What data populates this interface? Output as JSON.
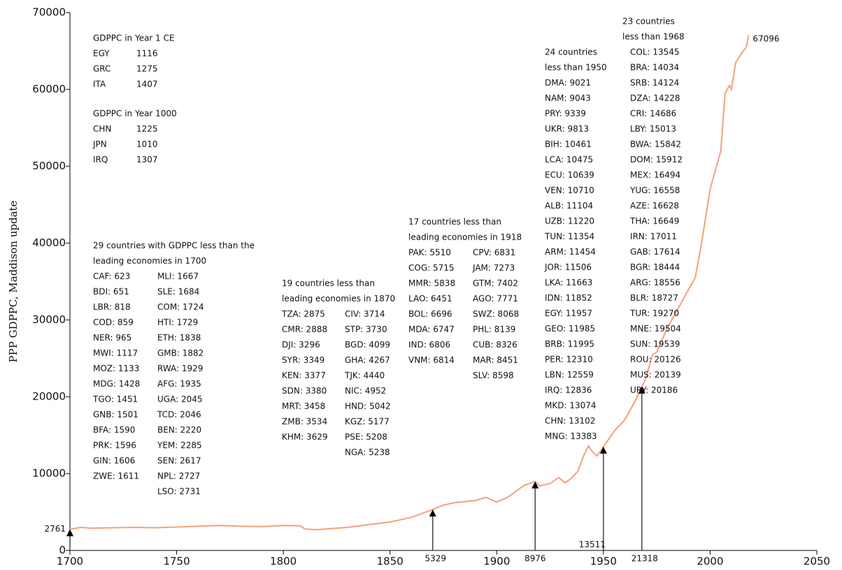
{
  "chart_data": {
    "type": "line",
    "y_label": "PPP GDPPC, Maddison update",
    "color": "#f7a07a",
    "x": [
      1700,
      1705,
      1710,
      1720,
      1730,
      1740,
      1750,
      1760,
      1770,
      1780,
      1790,
      1800,
      1808,
      1810,
      1815,
      1820,
      1830,
      1840,
      1850,
      1860,
      1870,
      1875,
      1880,
      1890,
      1895,
      1900,
      1905,
      1910,
      1913,
      1918,
      1920,
      1925,
      1929,
      1932,
      1935,
      1938,
      1941,
      1943,
      1945,
      1947,
      1950,
      1955,
      1960,
      1965,
      1968,
      1970,
      1973,
      1975,
      1980,
      1985,
      1990,
      1993,
      1996,
      2000,
      2005,
      2007,
      2009,
      2010,
      2012,
      2015,
      2017,
      2018
    ],
    "values": [
      2761,
      3000,
      2900,
      2950,
      3000,
      2950,
      3050,
      3150,
      3250,
      3150,
      3100,
      3250,
      3200,
      2800,
      2700,
      2800,
      3000,
      3350,
      3700,
      4300,
      5329,
      5900,
      6200,
      6500,
      6900,
      6300,
      6900,
      7900,
      8500,
      8976,
      8400,
      8700,
      9500,
      8800,
      9400,
      10300,
      12500,
      13600,
      12800,
      12300,
      13511,
      15500,
      17000,
      19500,
      21318,
      22500,
      25500,
      25800,
      29000,
      31500,
      34000,
      35500,
      40000,
      47000,
      52000,
      59500,
      60500,
      60000,
      63500,
      64800,
      65500,
      67096
    ],
    "xlim": [
      1700,
      2050
    ],
    "xticks": [
      1700,
      1750,
      1800,
      1850,
      1900,
      1950,
      2000,
      2050
    ],
    "ylim": [
      0,
      70000
    ],
    "yticks": [
      0,
      10000,
      20000,
      30000,
      40000,
      50000,
      60000,
      70000
    ],
    "markers": [
      {
        "x": 1700,
        "value": 2761
      },
      {
        "x": 1870,
        "value": 5329
      },
      {
        "x": 1918,
        "value": 8976
      },
      {
        "x": 1950,
        "value": 13511
      },
      {
        "x": 1968,
        "value": 21318
      }
    ],
    "annotations": [
      {
        "title": [
          "GDPPC in Year 1 CE"
        ],
        "columns": [
          [
            "EGY",
            "GRC",
            "ITA"
          ],
          [
            "1116",
            "1275",
            "1407"
          ]
        ]
      },
      {
        "title": [
          "GDPPC in Year 1000"
        ],
        "columns": [
          [
            "CHN",
            "JPN",
            "IRQ"
          ],
          [
            "1225",
            "1010",
            "1307"
          ]
        ]
      },
      {
        "title": [
          "29 countries with GDPPC less than the",
          "leading economies in 1700"
        ],
        "columns": [
          [
            "CAF: 623",
            "BDI: 651",
            "LBR: 818",
            "COD: 859",
            "NER: 965",
            "MWI: 1117",
            "MOZ: 1133",
            "MDG: 1428",
            "TGO: 1451",
            "GNB: 1501",
            "BFA: 1590",
            "PRK: 1596",
            "GIN: 1606",
            "ZWE: 1611"
          ],
          [
            "MLI: 1667",
            "SLE: 1684",
            "COM: 1724",
            "HTI: 1729",
            "ETH: 1838",
            "GMB: 1882",
            "RWA: 1929",
            "AFG: 1935",
            "UGA: 2045",
            "TCD: 2046",
            "BEN: 2220",
            "YEM: 2285",
            "SEN: 2617",
            "NPL: 2727",
            "LSO: 2731"
          ]
        ]
      },
      {
        "title": [
          "19 countries less than",
          "leading economies in 1870"
        ],
        "columns": [
          [
            "TZA: 2875",
            "CMR: 2888",
            "DJI: 3296",
            "SYR: 3349",
            "KEN: 3377",
            "SDN: 3380",
            "MRT: 3458",
            "ZMB: 3534",
            "KHM: 3629"
          ],
          [
            "CIV: 3714",
            "STP: 3730",
            "BGD: 4099",
            "GHA: 4267",
            "TJK: 4440",
            "NIC: 4952",
            "HND: 5042",
            "KGZ: 5177",
            "PSE: 5208",
            "NGA: 5238"
          ]
        ]
      },
      {
        "title": [
          "17 countries less than",
          "leading economies in 1918"
        ],
        "columns": [
          [
            "PAK: 5510",
            "COG: 5715",
            "MMR: 5838",
            "LAO: 6451",
            "BOL: 6696",
            "MDA: 6747",
            "IND: 6806",
            "VNM: 6814"
          ],
          [
            "CPV: 6831",
            "JAM: 7273",
            "GTM: 7402",
            "AGO: 7771",
            "SWZ: 8068",
            "PHL: 8139",
            "CUB: 8326",
            "MAR: 8451",
            "SLV: 8598"
          ]
        ]
      },
      {
        "title": [
          "24 countries",
          "less than 1950"
        ],
        "columns": [
          [
            "DMA: 9021",
            "NAM: 9043",
            "PRY: 9339",
            "UKR: 9813",
            "BIH: 10461",
            "LCA: 10475",
            "ECU: 10639",
            "VEN: 10710",
            "ALB: 11104",
            "UZB: 11220",
            "TUN: 11354",
            "ARM: 11454",
            "JOR: 11506",
            "LKA: 11663",
            "IDN: 11852",
            "EGY: 11957",
            "GEO: 11985",
            "BRB: 11995",
            "PER: 12310",
            "LBN: 12559",
            "IRQ: 12836",
            "MKD: 13074",
            "CHN: 13102",
            "MNG: 13383"
          ]
        ]
      },
      {
        "title": [
          "23 countries",
          "less than 1968"
        ],
        "columns": [
          [
            "COL: 13545",
            "BRA: 14034",
            "SRB: 14124",
            "DZA: 14228",
            "CRI: 14686",
            "LBY: 15013",
            "BWA: 15842",
            "DOM: 15912",
            "MEX: 16494",
            "YUG: 16558",
            "AZE: 16628",
            "THA: 16649",
            "IRN: 17011",
            "GAB: 17614",
            "BGR: 18444",
            "ARG: 18556",
            "BLR: 18727",
            "TUR: 19270",
            "MNE: 19504",
            "SUN: 19539",
            "ROU: 20126",
            "MUS: 20139",
            "URY: 20186"
          ]
        ]
      }
    ]
  }
}
